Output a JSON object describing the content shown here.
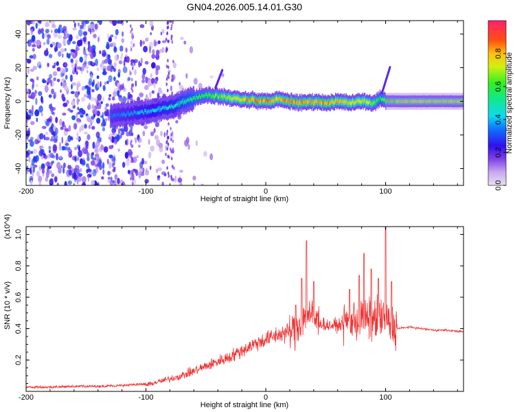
{
  "title": "GN04.2026.005.14.01.G30",
  "chart_data": [
    {
      "type": "heatmap",
      "title": "GN04.2026.005.14.01.G30",
      "xlabel": "Height of straight line (km)",
      "ylabel": "Frequency (Hz)",
      "xlim": [
        -200,
        165
      ],
      "ylim": [
        -50,
        48
      ],
      "x_ticks": [
        -200,
        -100,
        0,
        100
      ],
      "y_ticks": [
        -40,
        -20,
        0,
        20,
        40
      ],
      "x_tick_labels": [
        "-200",
        "-100",
        "0",
        "100"
      ],
      "y_tick_labels": [
        "-40",
        "-20",
        "0",
        "20",
        "40"
      ],
      "colorbar": {
        "label": "Normalized spectral amplitude",
        "range": [
          0.0,
          1.0
        ],
        "ticks": [
          0.0,
          0.2,
          0.4,
          0.6,
          0.8
        ],
        "tick_labels": [
          "0.0",
          "0.2",
          "0.4",
          "0.6",
          "0.8"
        ],
        "colormap": "rainbow (magenta-blue-cyan-green-yellow-red)"
      },
      "ridge": {
        "description": "Dominant frequency ridge vs height",
        "x": [
          -130,
          -110,
          -90,
          -75,
          -60,
          -50,
          -40,
          -30,
          -20,
          -10,
          0,
          10,
          20,
          30,
          40,
          50,
          60,
          70,
          80,
          90,
          95,
          100,
          110,
          130,
          165
        ],
        "frequency": [
          -9,
          -7,
          -5,
          -2,
          2,
          4,
          3,
          2,
          1,
          0.5,
          0,
          1,
          0,
          -1,
          0,
          -1,
          0,
          -1,
          0,
          -1,
          2,
          0,
          0,
          0,
          0
        ],
        "amplitude": [
          0.35,
          0.4,
          0.45,
          0.5,
          0.6,
          0.65,
          0.7,
          0.75,
          0.85,
          0.9,
          0.9,
          0.85,
          0.9,
          0.9,
          0.85,
          0.9,
          0.85,
          0.8,
          0.8,
          0.7,
          0.6,
          0.7,
          0.75,
          0.75,
          0.75
        ]
      },
      "noise_region": {
        "x_range": [
          -200,
          -75
        ],
        "description": "scattered low-amplitude noise across all frequencies"
      }
    },
    {
      "type": "line",
      "xlabel": "Height of straight line (km)",
      "ylabel": "SNR (10 * v/v)",
      "y_multiplier": "(x10^4)",
      "xlim": [
        -200,
        165
      ],
      "ylim": [
        0,
        1.05
      ],
      "x_ticks": [
        -200,
        -100,
        0,
        100
      ],
      "y_ticks": [
        0.2,
        0.4,
        0.6,
        0.8,
        1.0
      ],
      "x_tick_labels": [
        "-200",
        "-100",
        "0",
        "100"
      ],
      "y_tick_labels": [
        "0.2",
        "0.4",
        "0.6",
        "0.8",
        "1.0"
      ],
      "series": [
        {
          "name": "SNR",
          "color": "#ee3333",
          "x": [
            -200,
            -180,
            -160,
            -140,
            -120,
            -100,
            -90,
            -80,
            -70,
            -60,
            -50,
            -40,
            -30,
            -20,
            -10,
            0,
            10,
            20,
            25,
            30,
            35,
            40,
            50,
            60,
            70,
            80,
            90,
            95,
            100,
            105,
            110,
            120,
            130,
            140,
            150,
            165
          ],
          "values": [
            0.02,
            0.02,
            0.025,
            0.025,
            0.03,
            0.04,
            0.06,
            0.08,
            0.1,
            0.13,
            0.16,
            0.19,
            0.22,
            0.26,
            0.3,
            0.33,
            0.36,
            0.38,
            0.4,
            0.45,
            0.5,
            0.46,
            0.42,
            0.42,
            0.45,
            0.46,
            0.45,
            0.48,
            0.45,
            0.42,
            0.4,
            0.41,
            0.4,
            0.39,
            0.39,
            0.38
          ],
          "peaks": [
            {
              "x": 25,
              "value": 0.55
            },
            {
              "x": 30,
              "value": 0.72
            },
            {
              "x": 34,
              "value": 0.96
            },
            {
              "x": 40,
              "value": 0.7
            },
            {
              "x": 70,
              "value": 0.65
            },
            {
              "x": 78,
              "value": 0.74
            },
            {
              "x": 82,
              "value": 0.88
            },
            {
              "x": 88,
              "value": 0.78
            },
            {
              "x": 94,
              "value": 0.72
            },
            {
              "x": 100,
              "value": 1.05
            },
            {
              "x": 105,
              "value": 0.7
            }
          ]
        }
      ]
    }
  ]
}
